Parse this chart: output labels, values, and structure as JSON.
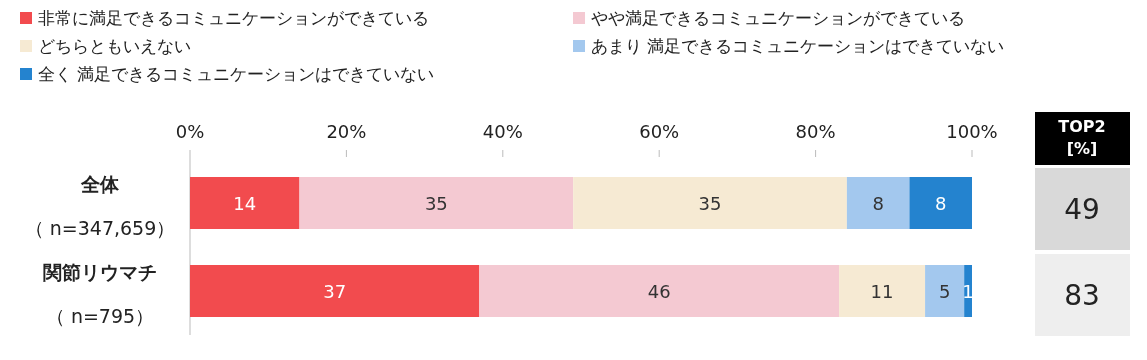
{
  "chart_data": {
    "type": "bar",
    "orientation": "horizontal",
    "stacked": true,
    "legend": "top",
    "data_labels": true,
    "grid": false,
    "categories": [
      "全体（ n=347,659）",
      "関節リウマチ（ n=795）"
    ],
    "xlim": [
      0,
      100
    ],
    "xticks": [
      {
        "value": 0,
        "label": "0%"
      },
      {
        "value": 20,
        "label": "20%"
      },
      {
        "value": 40,
        "label": "40%"
      },
      {
        "value": 60,
        "label": "60%"
      },
      {
        "value": 80,
        "label": "80%"
      },
      {
        "value": 100,
        "label": "100%"
      }
    ],
    "series": [
      {
        "name": "非常に満足できるコミュニケーションができている",
        "color": "#f24b4e",
        "values": [
          14,
          37
        ]
      },
      {
        "name": "やや満足できるコミュニケーションができている",
        "color": "#f4c9d2",
        "values": [
          35,
          46
        ]
      },
      {
        "name": "どちらともいえない",
        "color": "#f6ead3",
        "values": [
          35,
          11
        ]
      },
      {
        "name": "あまり 満足できるコミュニケーションはできていない",
        "color": "#a3c8ee",
        "values": [
          8,
          5
        ]
      },
      {
        "name": "全く 満足できるコミュニケーションはできていない",
        "color": "#2483cf",
        "values": [
          8,
          1
        ]
      }
    ],
    "annotations": [
      "TOP2\n[%]",
      "49",
      "83"
    ]
  }
}
